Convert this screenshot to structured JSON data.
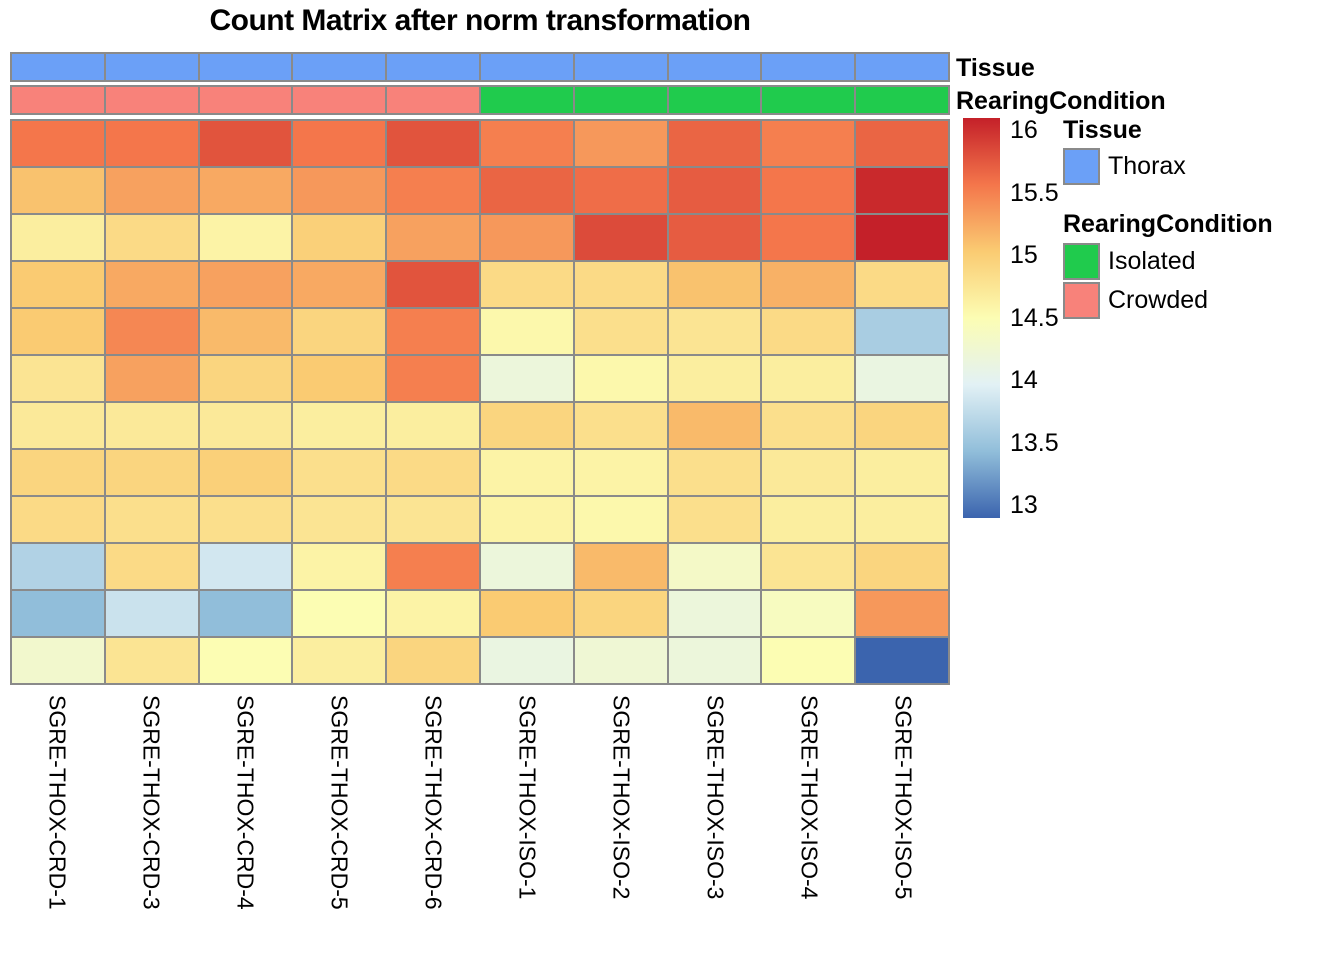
{
  "title": "Count Matrix after norm transformation",
  "annotation_rows": {
    "tissue_label": "Tissue",
    "rearing_label": "RearingCondition",
    "tissue_values": [
      "Thorax",
      "Thorax",
      "Thorax",
      "Thorax",
      "Thorax",
      "Thorax",
      "Thorax",
      "Thorax",
      "Thorax",
      "Thorax"
    ],
    "rearing_values": [
      "Crowded",
      "Crowded",
      "Crowded",
      "Crowded",
      "Crowded",
      "Isolated",
      "Isolated",
      "Isolated",
      "Isolated",
      "Isolated"
    ]
  },
  "legend": {
    "tissue_title": "Tissue",
    "tissue_items": [
      {
        "label": "Thorax",
        "color": "#6BA0F7"
      }
    ],
    "rearing_title": "RearingCondition",
    "rearing_items": [
      {
        "label": "Isolated",
        "color": "#20CB4D"
      },
      {
        "label": "Crowded",
        "color": "#F8827A"
      }
    ]
  },
  "colorbar": {
    "tick_labels": [
      "16",
      "15.5",
      "15",
      "14.5",
      "14",
      "13.5",
      "13"
    ],
    "tick_values": [
      16,
      15.5,
      15,
      14.5,
      14,
      13.5,
      13
    ]
  },
  "grid_color": "#8a8a8a",
  "chart_data": {
    "type": "heatmap",
    "title": "Count Matrix after norm transformation",
    "columns": [
      "SGRE-THOX-CRD-1",
      "SGRE-THOX-CRD-3",
      "SGRE-THOX-CRD-4",
      "SGRE-THOX-CRD-5",
      "SGRE-THOX-CRD-6",
      "SGRE-THOX-ISO-1",
      "SGRE-THOX-ISO-2",
      "SGRE-THOX-ISO-3",
      "SGRE-THOX-ISO-4",
      "SGRE-THOX-ISO-5"
    ],
    "n_rows": 12,
    "row_labels_shown": false,
    "legend_position": "right",
    "column_annotations": {
      "Tissue": [
        "Thorax",
        "Thorax",
        "Thorax",
        "Thorax",
        "Thorax",
        "Thorax",
        "Thorax",
        "Thorax",
        "Thorax",
        "Thorax"
      ],
      "RearingCondition": [
        "Crowded",
        "Crowded",
        "Crowded",
        "Crowded",
        "Crowded",
        "Isolated",
        "Isolated",
        "Isolated",
        "Isolated",
        "Isolated"
      ]
    },
    "values": [
      [
        15.5,
        15.5,
        15.7,
        15.5,
        15.7,
        15.45,
        15.3,
        15.6,
        15.45,
        15.6
      ],
      [
        15.05,
        15.25,
        15.2,
        15.3,
        15.45,
        15.6,
        15.55,
        15.65,
        15.5,
        15.95
      ],
      [
        14.65,
        14.85,
        14.6,
        14.95,
        15.25,
        15.3,
        15.75,
        15.65,
        15.5,
        16.0
      ],
      [
        15.0,
        15.2,
        15.25,
        15.2,
        15.7,
        14.85,
        14.85,
        15.05,
        15.15,
        14.85
      ],
      [
        15.0,
        15.4,
        15.1,
        14.9,
        15.45,
        14.55,
        14.8,
        14.75,
        14.85,
        13.65
      ],
      [
        14.75,
        15.25,
        14.9,
        15.0,
        15.45,
        14.2,
        14.55,
        14.65,
        14.65,
        14.15
      ],
      [
        14.7,
        14.7,
        14.7,
        14.65,
        14.65,
        14.9,
        14.8,
        15.1,
        14.8,
        14.9
      ],
      [
        14.9,
        14.9,
        14.95,
        14.8,
        14.85,
        14.6,
        14.6,
        14.8,
        14.7,
        14.65
      ],
      [
        14.85,
        14.8,
        14.8,
        14.75,
        14.75,
        14.6,
        14.55,
        14.8,
        14.65,
        14.65
      ],
      [
        13.7,
        14.85,
        13.9,
        14.6,
        15.45,
        14.2,
        15.1,
        14.35,
        14.75,
        14.9
      ],
      [
        13.5,
        13.85,
        13.5,
        14.5,
        14.6,
        15.0,
        14.9,
        14.2,
        14.4,
        15.3
      ],
      [
        14.3,
        14.75,
        14.5,
        14.65,
        14.9,
        14.15,
        14.25,
        14.2,
        14.5,
        13.0
      ]
    ],
    "color_scale": {
      "domain": [
        13,
        16
      ],
      "anchor_values": [
        13,
        13.5,
        14,
        14.5,
        15,
        15.5,
        16
      ],
      "anchor_colors": [
        "#3B64AE",
        "#91BEDA",
        "#E2F1F5",
        "#FCFDB3",
        "#FACB72",
        "#F4764B",
        "#C42029"
      ]
    }
  }
}
